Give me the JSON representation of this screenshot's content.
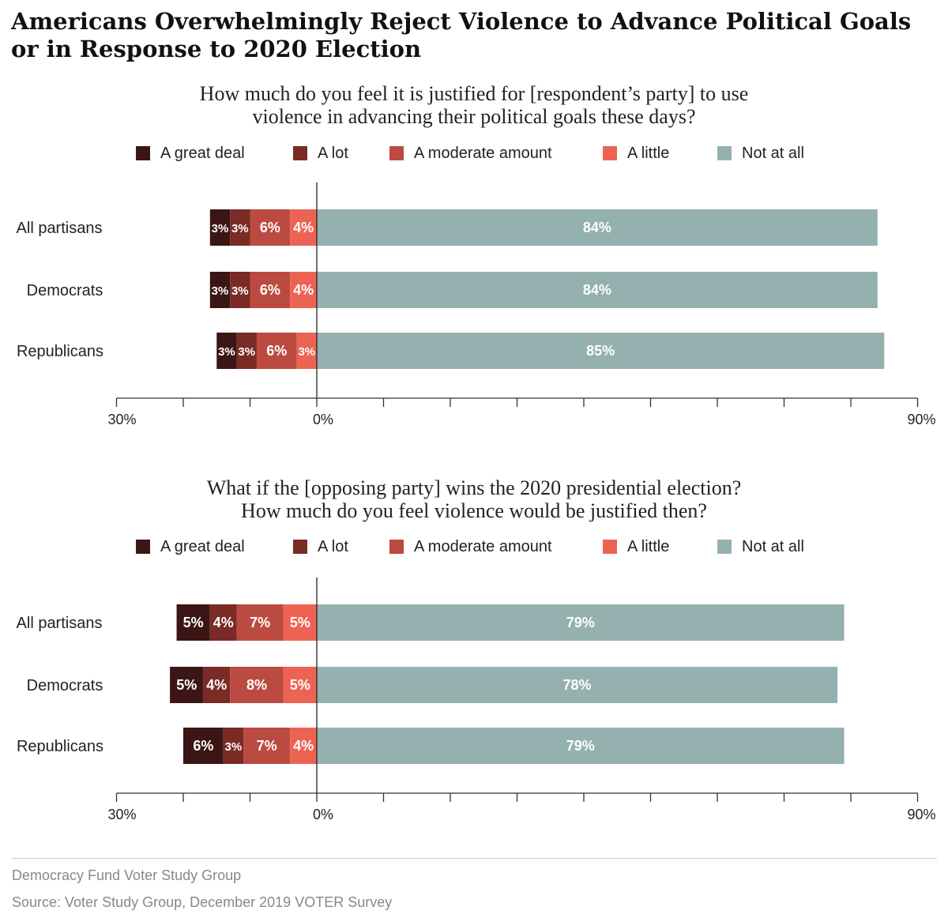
{
  "title": "Americans Overwhelmingly Reject Violence to Advance Political Goals or in Response to 2020 Election",
  "colors": {
    "A great deal": "#3b1614",
    "A lot": "#7a2b26",
    "A moderate amount": "#bb4b41",
    "A little": "#ed6353",
    "Not at all": "#95b1af"
  },
  "footer": {
    "org": "Democracy Fund Voter Study Group",
    "source": "Source: Voter Study Group, December 2019 VOTER Survey"
  },
  "chart_data": [
    {
      "type": "bar",
      "orientation": "horizontal-diverging",
      "subtitle_lines": [
        "How much do you feel it is justified for [respondent’s party] to use",
        "violence in advancing their political goals these days?"
      ],
      "legend": [
        "A great deal",
        "A lot",
        "A moderate amount",
        "A little",
        "Not at all"
      ],
      "categories": [
        "All partisans",
        "Democrats",
        "Republicans"
      ],
      "series": [
        {
          "name": "A great deal",
          "values": [
            3,
            3,
            3
          ],
          "labels": [
            "3%",
            "3%",
            "3%"
          ]
        },
        {
          "name": "A lot",
          "values": [
            3,
            3,
            3
          ],
          "labels": [
            "3%",
            "3%",
            "3%"
          ]
        },
        {
          "name": "A moderate amount",
          "values": [
            6,
            6,
            6
          ],
          "labels": [
            "6%",
            "6%",
            "6%"
          ]
        },
        {
          "name": "A little",
          "values": [
            4,
            4,
            3
          ],
          "labels": [
            "4%",
            "4%",
            "3%"
          ]
        },
        {
          "name": "Not at all",
          "values": [
            84,
            84,
            85
          ],
          "labels": [
            "84%",
            "84%",
            "85%"
          ]
        }
      ],
      "xlim": [
        -30,
        90
      ],
      "tick_labels": {
        "left": "30%",
        "zero": "0%",
        "right": "90%"
      }
    },
    {
      "type": "bar",
      "orientation": "horizontal-diverging",
      "subtitle_lines": [
        "What if the [opposing party] wins the 2020 presidential election?",
        "How much do you feel violence would be justified then?"
      ],
      "legend": [
        "A great deal",
        "A lot",
        "A moderate amount",
        "A little",
        "Not at all"
      ],
      "categories": [
        "All partisans",
        "Democrats",
        "Republicans"
      ],
      "series": [
        {
          "name": "A great deal",
          "values": [
            5,
            5,
            6
          ],
          "labels": [
            "5%",
            "5%",
            "6%"
          ]
        },
        {
          "name": "A lot",
          "values": [
            4,
            4,
            3
          ],
          "labels": [
            "4%",
            "4%",
            "3%"
          ]
        },
        {
          "name": "A moderate amount",
          "values": [
            7,
            8,
            7
          ],
          "labels": [
            "7%",
            "8%",
            "7%"
          ]
        },
        {
          "name": "A little",
          "values": [
            5,
            5,
            4
          ],
          "labels": [
            "5%",
            "5%",
            "4%"
          ]
        },
        {
          "name": "Not at all",
          "values": [
            79,
            78,
            79
          ],
          "labels": [
            "79%",
            "78%",
            "79%"
          ]
        }
      ],
      "xlim": [
        -30,
        90
      ],
      "tick_labels": {
        "left": "30%",
        "zero": "0%",
        "right": "90%"
      }
    }
  ]
}
